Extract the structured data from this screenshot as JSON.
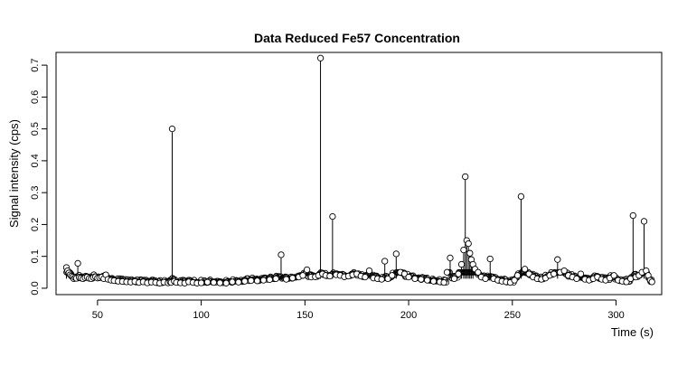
{
  "chart_data": {
    "type": "scatter",
    "title": "Data Reduced Fe57 Concentration",
    "xlabel": "Time (s)",
    "ylabel": "Signal intensity (cps)",
    "xlim": [
      30,
      322
    ],
    "ylim": [
      -0.02,
      0.74
    ],
    "x_ticks": [
      50,
      100,
      150,
      200,
      250,
      300
    ],
    "y_ticks": [
      0.0,
      0.1,
      0.2,
      0.3,
      0.4,
      0.5,
      0.6,
      0.7
    ],
    "x_tick_labels": [
      "50",
      "100",
      "150",
      "200",
      "250",
      "300"
    ],
    "y_tick_labels": [
      "0.0",
      "0.1",
      "0.2",
      "0.3",
      "0.4",
      "0.5",
      "0.6",
      "0.7"
    ],
    "grid": false,
    "legend": "none",
    "marker": "open-circle",
    "series": [
      {
        "x": [
          35.0,
          35.6,
          36.2,
          36.8,
          37.4,
          38.0,
          38.6,
          39.2,
          39.8,
          40.5,
          41.2,
          42.0,
          43.0,
          44.0,
          45.0,
          46.0,
          47.0,
          48.0,
          49.0,
          50.0,
          51.0,
          52.0,
          53.0,
          54.0,
          55.0,
          56.5,
          58.0,
          60.0,
          62.0,
          64.0,
          66.0,
          68.0,
          70.0,
          72.0,
          74.0,
          76.0,
          78.0,
          80.0,
          82.0,
          84.0,
          85.0,
          85.5,
          86.0,
          87.0,
          88.0,
          90.0,
          92.0,
          94.0,
          96.0,
          98.0,
          100.0,
          103.0,
          106.0,
          109.0,
          112.0,
          115.0,
          118.0,
          121.0,
          124.0,
          127.0,
          130.0,
          133.0,
          136.0,
          138.5,
          141.0,
          144.0,
          147.0,
          149.0,
          151.0,
          153.0,
          155.0,
          156.5,
          157.5,
          158.5,
          160.0,
          162.0,
          163.3,
          165.0,
          167.0,
          169.0,
          171.0,
          173.0,
          175.0,
          177.0,
          179.0,
          181.0,
          183.0,
          185.0,
          187.0,
          188.5,
          190.0,
          192.0,
          194.0,
          196.0,
          198.0,
          200.0,
          203.0,
          206.0,
          209.0,
          212.0,
          215.0,
          217.0,
          218.5,
          220.0,
          222.0,
          224.0,
          225.5,
          226.5,
          227.3,
          228.0,
          228.8,
          229.5,
          230.2,
          231.0,
          232.0,
          233.5,
          235.0,
          237.0,
          239.3,
          241.0,
          243.0,
          245.0,
          247.0,
          249.0,
          251.0,
          252.5,
          254.2,
          256.0,
          258.0,
          260.0,
          262.0,
          264.0,
          266.0,
          268.0,
          270.0,
          271.8,
          273.0,
          275.0,
          277.0,
          279.0,
          281.0,
          283.0,
          285.0,
          287.0,
          289.0,
          291.0,
          293.0,
          295.0,
          297.0,
          299.0,
          301.0,
          303.0,
          305.0,
          307.0,
          308.2,
          309.5,
          311.0,
          312.5,
          313.5,
          314.5,
          315.5,
          316.5,
          317.3
        ],
        "y": [
          0.065,
          0.055,
          0.048,
          0.042,
          0.038,
          0.035,
          0.03,
          0.033,
          0.031,
          0.078,
          0.034,
          0.032,
          0.03,
          0.033,
          0.035,
          0.031,
          0.03,
          0.034,
          0.036,
          0.032,
          0.033,
          0.035,
          0.03,
          0.042,
          0.028,
          0.025,
          0.024,
          0.022,
          0.021,
          0.02,
          0.019,
          0.021,
          0.018,
          0.02,
          0.017,
          0.019,
          0.018,
          0.016,
          0.019,
          0.017,
          0.02,
          0.018,
          0.5,
          0.022,
          0.018,
          0.017,
          0.016,
          0.02,
          0.018,
          0.016,
          0.017,
          0.019,
          0.018,
          0.017,
          0.016,
          0.02,
          0.019,
          0.022,
          0.024,
          0.023,
          0.025,
          0.027,
          0.03,
          0.105,
          0.028,
          0.032,
          0.035,
          0.04,
          0.058,
          0.035,
          0.036,
          0.04,
          0.722,
          0.045,
          0.04,
          0.038,
          0.225,
          0.042,
          0.04,
          0.036,
          0.038,
          0.042,
          0.045,
          0.038,
          0.035,
          0.055,
          0.032,
          0.03,
          0.028,
          0.085,
          0.03,
          0.04,
          0.108,
          0.05,
          0.045,
          0.035,
          0.03,
          0.028,
          0.025,
          0.022,
          0.02,
          0.018,
          0.05,
          0.095,
          0.03,
          0.045,
          0.075,
          0.12,
          0.35,
          0.15,
          0.14,
          0.11,
          0.09,
          0.075,
          0.06,
          0.05,
          0.035,
          0.03,
          0.092,
          0.03,
          0.025,
          0.022,
          0.02,
          0.018,
          0.025,
          0.04,
          0.288,
          0.06,
          0.045,
          0.035,
          0.03,
          0.028,
          0.032,
          0.04,
          0.045,
          0.09,
          0.05,
          0.055,
          0.04,
          0.035,
          0.03,
          0.045,
          0.028,
          0.025,
          0.03,
          0.035,
          0.028,
          0.025,
          0.032,
          0.04,
          0.025,
          0.022,
          0.02,
          0.03,
          0.228,
          0.035,
          0.04,
          0.05,
          0.21,
          0.055,
          0.04,
          0.025,
          0.02
        ]
      }
    ]
  }
}
